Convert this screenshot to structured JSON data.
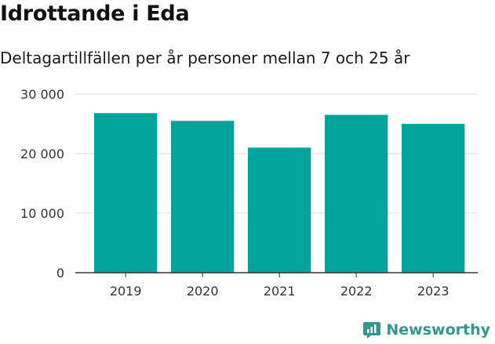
{
  "title": "Idrottande i Eda",
  "subtitle": "Deltagartillfällen per år personer mellan 7 och 25 år",
  "brand": "Newsworthy",
  "colors": {
    "bar": "#00a49a",
    "grid": "#dddddd",
    "axis": "#333333",
    "brand": "#2e9a8e"
  },
  "chart_data": {
    "type": "bar",
    "categories": [
      "2019",
      "2020",
      "2021",
      "2022",
      "2023"
    ],
    "values": [
      26800,
      25500,
      21000,
      26500,
      25000
    ],
    "ylim": [
      0,
      30000
    ],
    "yticks": [
      0,
      10000,
      20000,
      30000
    ],
    "ytick_labels": [
      "0",
      "10 000",
      "20 000",
      "30 000"
    ],
    "grid": true,
    "xlabel": "",
    "ylabel": ""
  }
}
